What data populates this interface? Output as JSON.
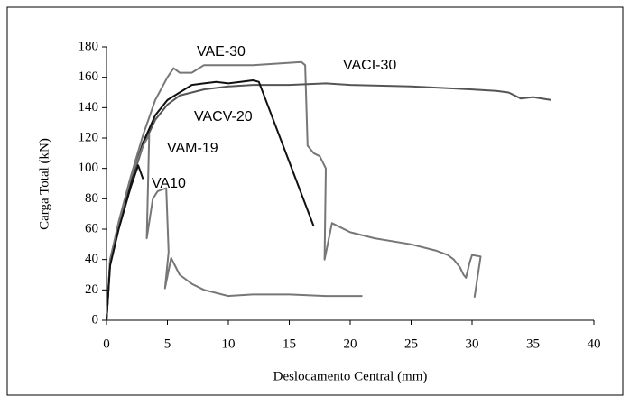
{
  "chart_data": {
    "type": "line",
    "xlabel": "Deslocamento Central (mm)",
    "ylabel": "Carga Total (kN)",
    "xlim": [
      0,
      40
    ],
    "xticks": [
      0,
      5,
      10,
      15,
      20,
      25,
      30,
      35,
      40
    ],
    "ylim": [
      0,
      180
    ],
    "yticks": [
      0,
      20,
      40,
      60,
      80,
      100,
      120,
      140,
      160,
      180
    ],
    "grid": false,
    "series": [
      {
        "name": "VAE-30",
        "color": "#777777",
        "x": [
          0,
          0.3,
          1,
          2,
          3,
          4,
          5,
          5.5,
          6,
          7,
          8,
          10,
          12,
          14,
          16,
          16.3,
          16.5,
          17,
          17.5,
          18,
          17.9,
          18.5,
          20,
          22,
          25,
          27,
          28,
          28.5,
          29,
          29.3,
          29.5,
          29.8,
          30,
          30.7,
          30.2
        ],
        "values": [
          0,
          40,
          65,
          95,
          122,
          145,
          160,
          166,
          163,
          163,
          168,
          168,
          168,
          169,
          170,
          168,
          115,
          110,
          108,
          100,
          40,
          64,
          58,
          54,
          50,
          46,
          43,
          40,
          35,
          30,
          28,
          38,
          43,
          42,
          15
        ]
      },
      {
        "name": "VACI-30",
        "color": "#555555",
        "x": [
          0,
          0.3,
          1,
          2,
          3,
          4,
          5,
          6,
          8,
          10,
          12,
          15,
          18,
          20,
          25,
          30,
          32,
          33,
          34,
          35,
          36.5
        ],
        "values": [
          0,
          38,
          62,
          90,
          115,
          132,
          142,
          148,
          152,
          154,
          155,
          155,
          156,
          155,
          154,
          152,
          151,
          150,
          146,
          147,
          145
        ]
      },
      {
        "name": "VACV-20",
        "color": "#111111",
        "x": [
          0,
          0.3,
          1,
          2,
          3,
          4,
          5,
          6,
          7,
          8,
          9,
          10,
          11,
          12,
          12.5,
          17
        ],
        "values": [
          0,
          38,
          62,
          92,
          117,
          135,
          145,
          150,
          155,
          156,
          157,
          156,
          157,
          158,
          157,
          62
        ]
      },
      {
        "name": "VAM-19",
        "color": "#777777",
        "x": [
          0,
          0.3,
          1,
          2,
          3,
          3.5,
          3.3,
          3.8,
          4.2,
          4.9,
          5.1,
          4.8,
          5.3,
          6,
          7,
          8,
          10,
          12,
          15,
          18,
          21
        ],
        "values": [
          0,
          40,
          64,
          94,
          115,
          122,
          54,
          80,
          85,
          87,
          45,
          21,
          41,
          30,
          24,
          20,
          16,
          17,
          17,
          16,
          16
        ]
      },
      {
        "name": "VA10",
        "color": "#111111",
        "x": [
          0,
          0.3,
          1,
          2,
          2.6,
          3
        ],
        "values": [
          0,
          36,
          60,
          88,
          102,
          93
        ]
      }
    ]
  }
}
